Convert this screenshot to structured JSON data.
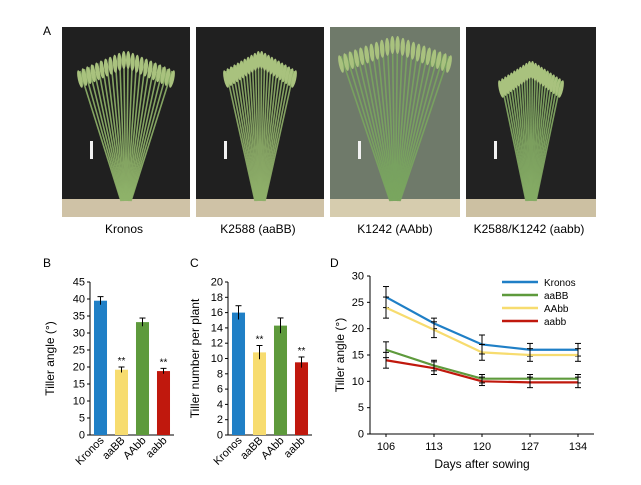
{
  "panel_letters": {
    "a": "A",
    "b": "B",
    "c": "C",
    "d": "D"
  },
  "photos": [
    {
      "label": "Kronos"
    },
    {
      "label": "K2588 (aaBB)"
    },
    {
      "label": "K1242 (AAbb)"
    },
    {
      "label": "K2588/K1242 (aabb)"
    }
  ],
  "chart_data": [
    {
      "type": "bar",
      "panel": "B",
      "ylabel": "Tiller angle (°)",
      "ylim": [
        0,
        45
      ],
      "yticks": [
        "0",
        "5",
        "10",
        "15",
        "20",
        "25",
        "30",
        "35",
        "40",
        "45"
      ],
      "categories": [
        "Kronos",
        "aaBB",
        "AAbb",
        "aabb"
      ],
      "values": [
        39.5,
        19.2,
        33.2,
        18.8
      ],
      "errors": [
        1.2,
        0.8,
        1.2,
        0.8
      ],
      "colors": [
        "#1f7fc6",
        "#f7dc6f",
        "#5e9a3c",
        "#c0180d"
      ],
      "annotations": [
        "",
        "**",
        "",
        "**"
      ]
    },
    {
      "type": "bar",
      "panel": "C",
      "ylabel": "Tiller number per plant",
      "ylim": [
        0,
        20
      ],
      "yticks": [
        "0",
        "2",
        "4",
        "6",
        "8",
        "10",
        "12",
        "14",
        "16",
        "18",
        "20"
      ],
      "categories": [
        "Kronos",
        "aaBB",
        "AAbb",
        "aabb"
      ],
      "values": [
        16.0,
        10.8,
        14.3,
        9.5
      ],
      "errors": [
        0.9,
        0.9,
        1.0,
        0.7
      ],
      "colors": [
        "#1f7fc6",
        "#f7dc6f",
        "#5e9a3c",
        "#c0180d"
      ],
      "annotations": [
        "",
        "**",
        "",
        "**"
      ]
    },
    {
      "type": "line",
      "panel": "D",
      "xlabel": "Days after sowing",
      "ylabel": "Tiller angle (°)",
      "x": [
        106,
        113,
        120,
        127,
        134
      ],
      "xticks": [
        "106",
        "113",
        "120",
        "127",
        "134"
      ],
      "ylim": [
        0,
        30
      ],
      "yticks": [
        "0",
        "5",
        "10",
        "15",
        "20",
        "25",
        "30"
      ],
      "legend_position": "top-right",
      "series": [
        {
          "name": "Kronos",
          "color": "#1f7fc6",
          "values": [
            26.0,
            21.0,
            17.0,
            16.0,
            16.0
          ],
          "errors": [
            2.0,
            1.0,
            1.8,
            1.2,
            1.2
          ]
        },
        {
          "name": "aaBB",
          "color": "#5e9a3c",
          "values": [
            16.0,
            13.0,
            10.5,
            10.5,
            10.5
          ],
          "errors": [
            1.5,
            1.0,
            0.8,
            0.8,
            0.8
          ]
        },
        {
          "name": "AAbb",
          "color": "#f7dc6f",
          "values": [
            24.0,
            19.8,
            15.5,
            15.0,
            15.0
          ],
          "errors": [
            2.0,
            1.5,
            1.5,
            1.2,
            1.2
          ]
        },
        {
          "name": "aabb",
          "color": "#c0180d",
          "values": [
            14.0,
            12.5,
            10.0,
            9.8,
            9.8
          ],
          "errors": [
            1.5,
            1.2,
            0.8,
            1.0,
            1.0
          ]
        }
      ]
    }
  ]
}
